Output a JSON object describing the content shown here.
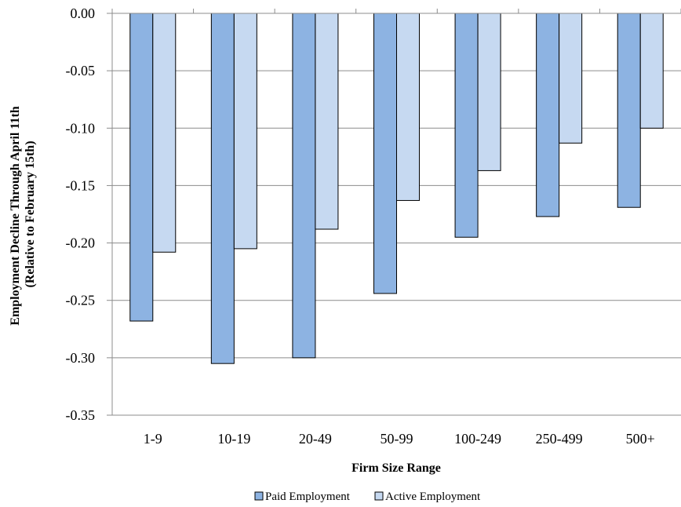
{
  "chart_data": {
    "type": "bar",
    "title": "",
    "xlabel": "Firm Size Range",
    "ylabel_line1": "Employment Decline Through April 11th",
    "ylabel_line2": "(Relative to February 15th)",
    "categories": [
      "1-9",
      "10-19",
      "20-49",
      "50-99",
      "100-249",
      "250-499",
      "500+"
    ],
    "series": [
      {
        "name": "Paid Employment",
        "color": "#8db3e2",
        "values": [
          -0.268,
          -0.305,
          -0.3,
          -0.244,
          -0.195,
          -0.177,
          -0.169
        ]
      },
      {
        "name": "Active Employment",
        "color": "#c6d9f1",
        "values": [
          -0.208,
          -0.205,
          -0.188,
          -0.163,
          -0.137,
          -0.113,
          -0.1
        ]
      }
    ],
    "ylim": [
      -0.35,
      0.0
    ],
    "yticks": [
      0.0,
      -0.05,
      -0.1,
      -0.15,
      -0.2,
      -0.25,
      -0.3,
      -0.35
    ],
    "ytick_labels": [
      "0.00",
      "-0.05",
      "-0.10",
      "-0.15",
      "-0.20",
      "-0.25",
      "-0.30",
      "-0.35"
    ],
    "grid": true,
    "legend_position": "bottom"
  }
}
